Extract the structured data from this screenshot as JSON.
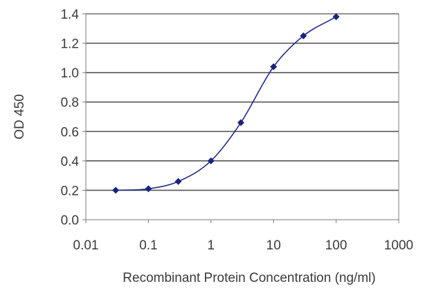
{
  "chart_data": {
    "type": "scatter",
    "title": "",
    "xlabel": "Recombinant Protein Concentration (ng/ml)",
    "ylabel": "OD 450",
    "xscale": "log",
    "xlim": [
      0.01,
      1000
    ],
    "ylim": [
      0.0,
      1.4
    ],
    "xticks": [
      0.01,
      0.1,
      1,
      10,
      100,
      1000
    ],
    "xtick_labels": [
      "0.01",
      "0.1",
      "1",
      "10",
      "100",
      "1000"
    ],
    "yticks": [
      0.0,
      0.2,
      0.4,
      0.6,
      0.8,
      1.0,
      1.2,
      1.4
    ],
    "ytick_labels": [
      "0.0",
      "0.2",
      "0.4",
      "0.6",
      "0.8",
      "1.0",
      "1.2",
      "1.4"
    ],
    "grid": "horizontal",
    "legend": "none",
    "colors": {
      "series": "#1f2a8c",
      "marker": "#1a237e",
      "grid": "#555555",
      "frame": "#7a7a7a"
    },
    "series": [
      {
        "x": [
          0.03,
          0.1,
          0.3,
          1,
          3,
          10,
          30,
          100
        ],
        "y": [
          0.2,
          0.21,
          0.26,
          0.4,
          0.66,
          1.04,
          1.25,
          1.38
        ],
        "fit_curve": true
      }
    ]
  }
}
